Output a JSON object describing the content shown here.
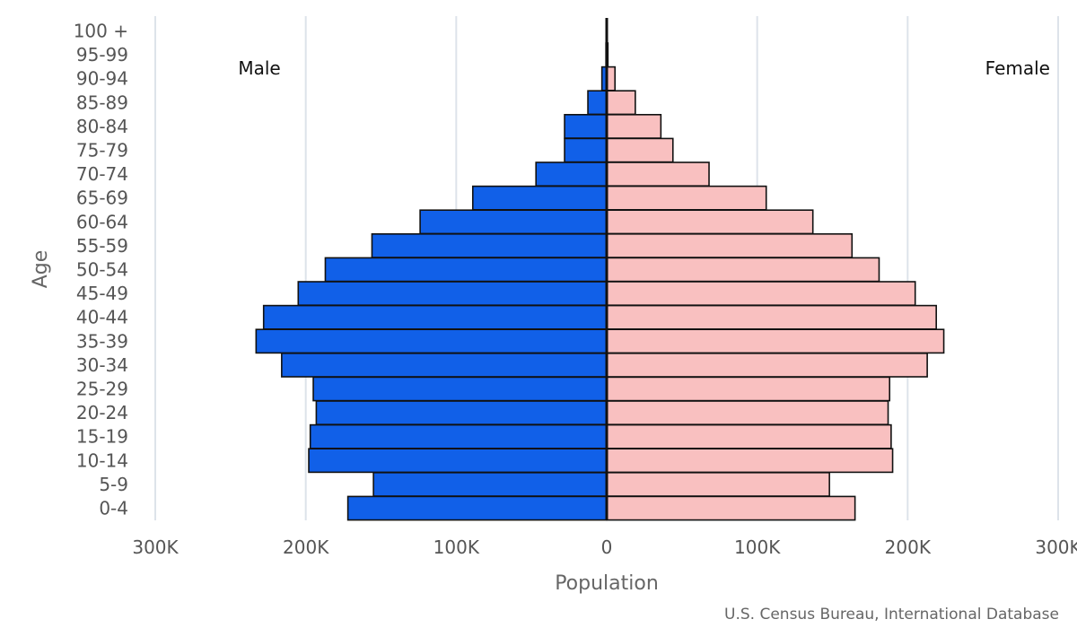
{
  "chart_data": {
    "type": "bar",
    "orientation": "horizontal",
    "subtype": "population-pyramid",
    "categories": [
      "0-4",
      "5-9",
      "10-14",
      "15-19",
      "20-24",
      "25-29",
      "30-34",
      "35-39",
      "40-44",
      "45-49",
      "50-54",
      "55-59",
      "60-64",
      "65-69",
      "70-74",
      "75-79",
      "80-84",
      "85-89",
      "90-94",
      "95-99",
      "100 +"
    ],
    "series": [
      {
        "name": "Male",
        "label": "Male",
        "color": "#1160e8",
        "values": [
          172000,
          155000,
          198000,
          197000,
          193000,
          195000,
          216000,
          233000,
          228000,
          205000,
          187000,
          156000,
          124000,
          89000,
          47000,
          28000,
          28000,
          12500,
          3200,
          500,
          150
        ]
      },
      {
        "name": "Female",
        "label": "Female",
        "color": "#f9c0c0",
        "values": [
          165000,
          148000,
          190000,
          189000,
          187000,
          188000,
          213000,
          224000,
          219000,
          205000,
          181000,
          163000,
          137000,
          106000,
          68000,
          44000,
          36000,
          19000,
          5500,
          800,
          250
        ]
      }
    ],
    "xlim": [
      -300000,
      300000
    ],
    "x_ticks": [
      -300000,
      -200000,
      -100000,
      0,
      100000,
      200000,
      300000
    ],
    "x_tick_labels": [
      "300K",
      "200K",
      "100K",
      "0",
      "100K",
      "200K",
      "300K"
    ],
    "xlabel": "Population",
    "ylabel": "Age",
    "grid": true,
    "source": "U.S. Census Bureau, International Database"
  }
}
